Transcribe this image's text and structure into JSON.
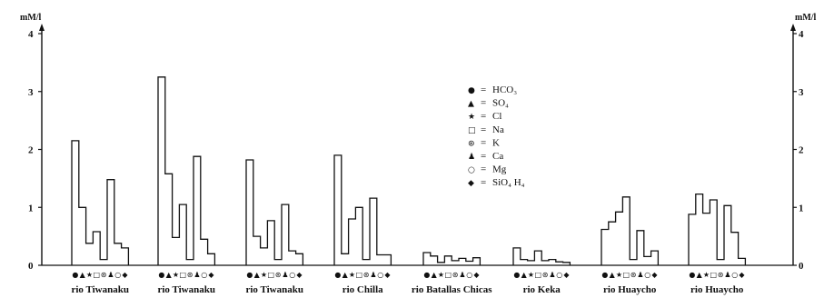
{
  "chart_data": {
    "type": "bar",
    "ylabel_left": "mM/l",
    "ylabel_right": "mM/l",
    "ylim": [
      0,
      4
    ],
    "yticks": [
      "0",
      "1",
      "2",
      "3",
      "4"
    ],
    "grid": false,
    "legend_position": "top-center",
    "ions": [
      {
        "name": "HCO3",
        "label": "HCO₃",
        "symbol": "●",
        "prefix": "="
      },
      {
        "name": "SO4",
        "label": "SO₄",
        "symbol": "▲",
        "prefix": "="
      },
      {
        "name": "Cl",
        "label": "Cl",
        "symbol": "★",
        "prefix": "="
      },
      {
        "name": "Na",
        "label": "Na",
        "symbol": "□",
        "prefix": "="
      },
      {
        "name": "K",
        "label": "K",
        "symbol": "⊛",
        "prefix": "="
      },
      {
        "name": "Ca",
        "label": "Ca",
        "symbol": "♟",
        "prefix": "="
      },
      {
        "name": "Mg",
        "label": "Mg",
        "symbol": "○",
        "prefix": "="
      },
      {
        "name": "SiO4H4",
        "label": "SiO₄ H₄",
        "symbol": "◆",
        "prefix": "="
      }
    ],
    "groups": [
      {
        "label": "rio Tiwanaku",
        "values": [
          2.15,
          1.0,
          0.38,
          0.58,
          0.1,
          1.48,
          0.38,
          0.3
        ]
      },
      {
        "label": "rio Tiwanaku",
        "values": [
          3.25,
          1.58,
          0.48,
          1.05,
          0.1,
          1.88,
          0.45,
          0.2
        ]
      },
      {
        "label": "rio Tiwanaku",
        "values": [
          1.82,
          0.5,
          0.3,
          0.77,
          0.1,
          1.05,
          0.25,
          0.2
        ]
      },
      {
        "label": "rio Chilla",
        "values": [
          1.9,
          0.2,
          0.8,
          1.0,
          0.1,
          1.16,
          0.18,
          0.18
        ]
      },
      {
        "label": "rio Batallas Chicas",
        "values": [
          0.22,
          0.16,
          0.05,
          0.16,
          0.08,
          0.12,
          0.07,
          0.13
        ]
      },
      {
        "label": "rio Keka",
        "values": [
          0.3,
          0.1,
          0.08,
          0.25,
          0.08,
          0.1,
          0.06,
          0.05
        ]
      },
      {
        "label": "rio Huaycho",
        "values": [
          0.62,
          0.75,
          0.92,
          1.18,
          0.1,
          0.6,
          0.15,
          0.25
        ]
      },
      {
        "label": "rio Huaycho",
        "values": [
          0.88,
          1.23,
          0.9,
          1.13,
          0.1,
          1.03,
          0.57,
          0.12
        ]
      }
    ]
  }
}
